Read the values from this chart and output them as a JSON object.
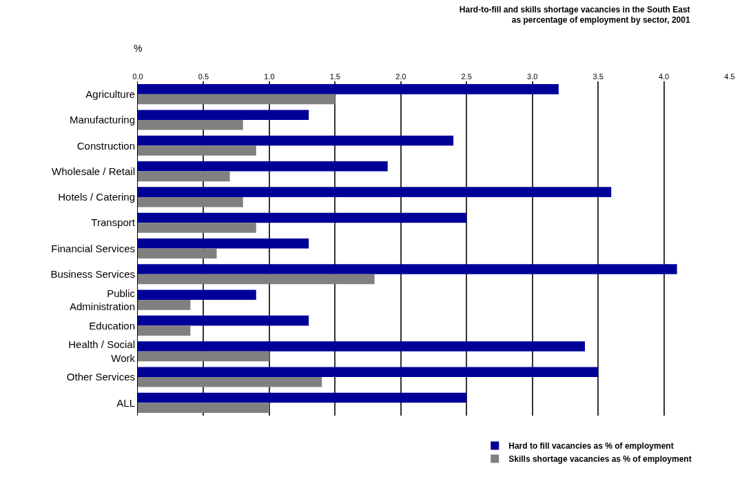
{
  "chart_data": {
    "type": "bar",
    "orientation": "horizontal",
    "title": "Hard-to-fill and skills shortage vacancies in the South East\nas percentage of employment by sector, 2001",
    "xlabel": "%",
    "categories": [
      "Agriculture",
      "Manufacturing",
      "Construction",
      "Wholesale / Retail",
      "Hotels / Catering",
      "Transport",
      "Financial Services",
      "Business Services",
      "Public Administration",
      "Education",
      "Health / Social Work",
      "Other Services",
      "ALL"
    ],
    "series": [
      {
        "name": "Hard to fill vacancies as % of employment",
        "color": "#000099",
        "values": [
          3.2,
          1.3,
          2.4,
          1.9,
          3.6,
          2.5,
          1.3,
          4.1,
          0.9,
          1.3,
          3.4,
          3.5,
          2.5
        ]
      },
      {
        "name": "Skills shortage vacancies as % of employment",
        "color": "#808080",
        "values": [
          1.5,
          0.8,
          0.9,
          0.7,
          0.8,
          0.9,
          0.6,
          1.8,
          0.4,
          0.4,
          1.0,
          1.4,
          1.0
        ]
      }
    ],
    "xlim": [
      0,
      4.5
    ],
    "xticks": [
      {
        "value": 0,
        "label": "0.0"
      },
      {
        "value": 0.5,
        "label": "0.5"
      },
      {
        "value": 1,
        "label": "1.0"
      },
      {
        "value": 1.5,
        "label": "1.5"
      },
      {
        "value": 2,
        "label": "2.0"
      },
      {
        "value": 2.5,
        "label": "2.5"
      },
      {
        "value": 3,
        "label": "3.0"
      },
      {
        "value": 3.5,
        "label": "3.5"
      },
      {
        "value": 4,
        "label": "4.0"
      },
      {
        "value": 4.5,
        "label": "4.5"
      }
    ],
    "grid": "x",
    "legend": "bottom"
  }
}
